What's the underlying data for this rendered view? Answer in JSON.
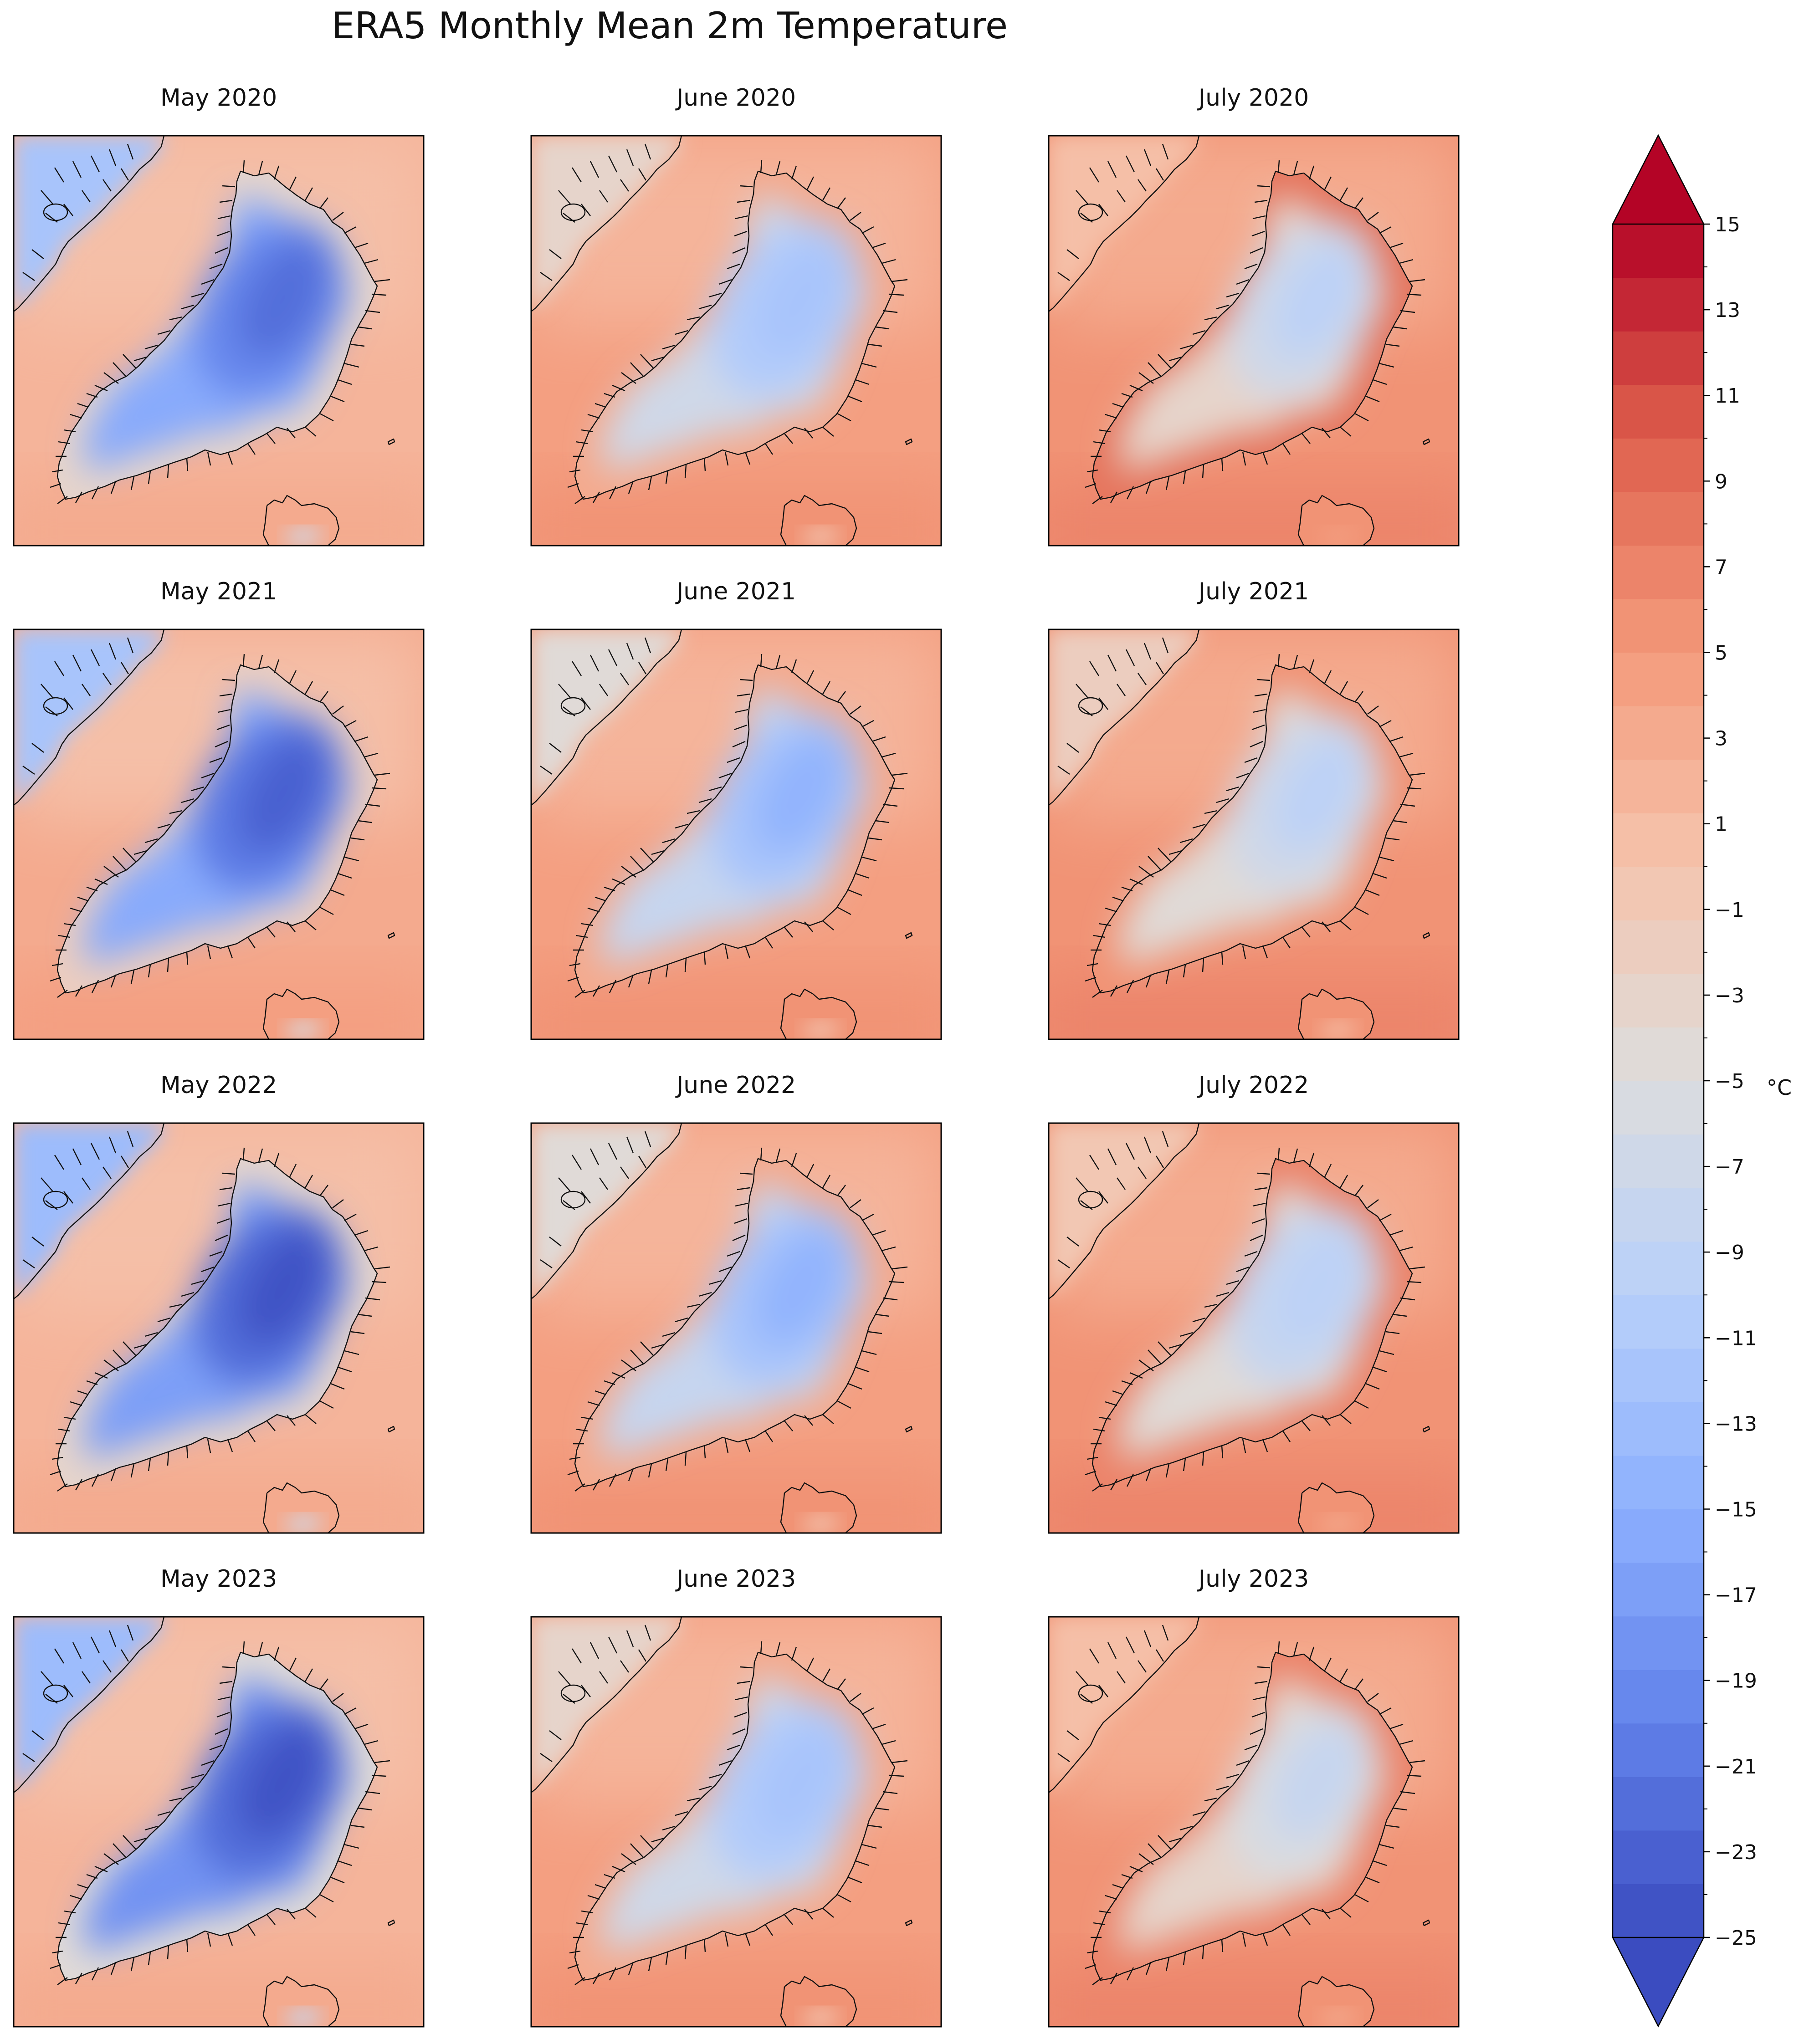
{
  "title": "ERA5 Monthly Mean 2m Temperature",
  "colorbar": {
    "label": "°C",
    "min": -25,
    "max": 15,
    "step": 1.25,
    "extend": "both",
    "tick_labels": [
      "15",
      "13",
      "11",
      "9",
      "7",
      "5",
      "3",
      "1",
      "−1",
      "−3",
      "−5",
      "−7",
      "−9",
      "−11",
      "−13",
      "−15",
      "−17",
      "−19",
      "−21",
      "−23",
      "−25"
    ],
    "colormap": "coolwarm",
    "low_color": "#3b4cc0",
    "high_color": "#b40426"
  },
  "chart_data": {
    "type": "heatmap",
    "variable": "2m temperature (monthly mean)",
    "units": "°C",
    "region": "Greenland",
    "layout": "4 rows (years) x 3 columns (months)",
    "panels": [
      {
        "title": "May 2020",
        "ice_min_c": -22,
        "coast_c": -3,
        "ocean_c": 2
      },
      {
        "title": "June 2020",
        "ice_min_c": -12,
        "coast_c": 3,
        "ocean_c": 4
      },
      {
        "title": "July 2020",
        "ice_min_c": -9,
        "coast_c": 8,
        "ocean_c": 5
      },
      {
        "title": "May 2021",
        "ice_min_c": -23,
        "coast_c": -2,
        "ocean_c": 3
      },
      {
        "title": "June 2021",
        "ice_min_c": -14,
        "coast_c": 3,
        "ocean_c": 4
      },
      {
        "title": "July 2021",
        "ice_min_c": -9,
        "coast_c": 5,
        "ocean_c": 5
      },
      {
        "title": "May 2022",
        "ice_min_c": -25,
        "coast_c": -3,
        "ocean_c": 2
      },
      {
        "title": "June 2022",
        "ice_min_c": -14,
        "coast_c": 3,
        "ocean_c": 4
      },
      {
        "title": "July 2022",
        "ice_min_c": -10,
        "coast_c": 7,
        "ocean_c": 5
      },
      {
        "title": "May 2023",
        "ice_min_c": -25,
        "coast_c": -4,
        "ocean_c": 2
      },
      {
        "title": "June 2023",
        "ice_min_c": -12,
        "coast_c": 3,
        "ocean_c": 4
      },
      {
        "title": "July 2023",
        "ice_min_c": -8,
        "coast_c": 7,
        "ocean_c": 5
      }
    ]
  }
}
